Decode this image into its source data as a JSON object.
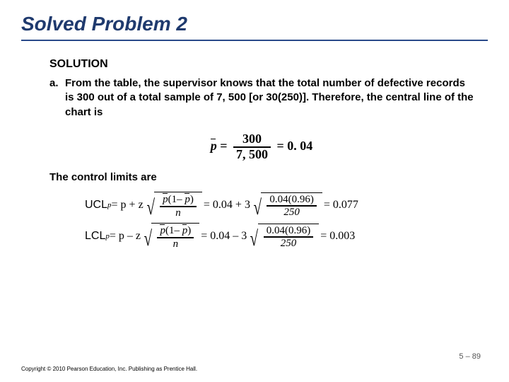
{
  "title": "Solved Problem 2",
  "solution_label": "SOLUTION",
  "item": {
    "letter": "a.",
    "text": "From the table, the supervisor knows that the total number of defective records is 300 out of a total sample of 7, 500 [or 30(250)]. Therefore, the central line of the chart is"
  },
  "pbar_eq": {
    "symbol": "p",
    "eq1": " = ",
    "num": "300",
    "den": "7, 500",
    "eq2": " = 0. 04"
  },
  "control_text": "The control limits are",
  "ucl": {
    "label": "UCL",
    "sub": "p",
    "expr_lhs": " = p + z",
    "sym_num_left": "p",
    "sym_num_mid": "(1– ",
    "sym_num_right": "p",
    "sym_num_end": ")",
    "sym_den": "n",
    "mid": " = 0.04 + 3",
    "val_num": "0.04(0.96)",
    "val_den": "250",
    "result": " = 0.077"
  },
  "lcl": {
    "label": "LCL",
    "sub": "p",
    "expr_lhs": " = p – z",
    "sym_num_left": "p",
    "sym_num_mid": "(1– ",
    "sym_num_right": "p",
    "sym_num_end": ")",
    "sym_den": "n",
    "mid": " = 0.04 – 3",
    "val_num": "0.04(0.96)",
    "val_den": "250",
    "result": " = 0.003"
  },
  "slide_number": "5 – 89",
  "copyright": "Copyright © 2010 Pearson Education, Inc. Publishing as Prentice Hall."
}
